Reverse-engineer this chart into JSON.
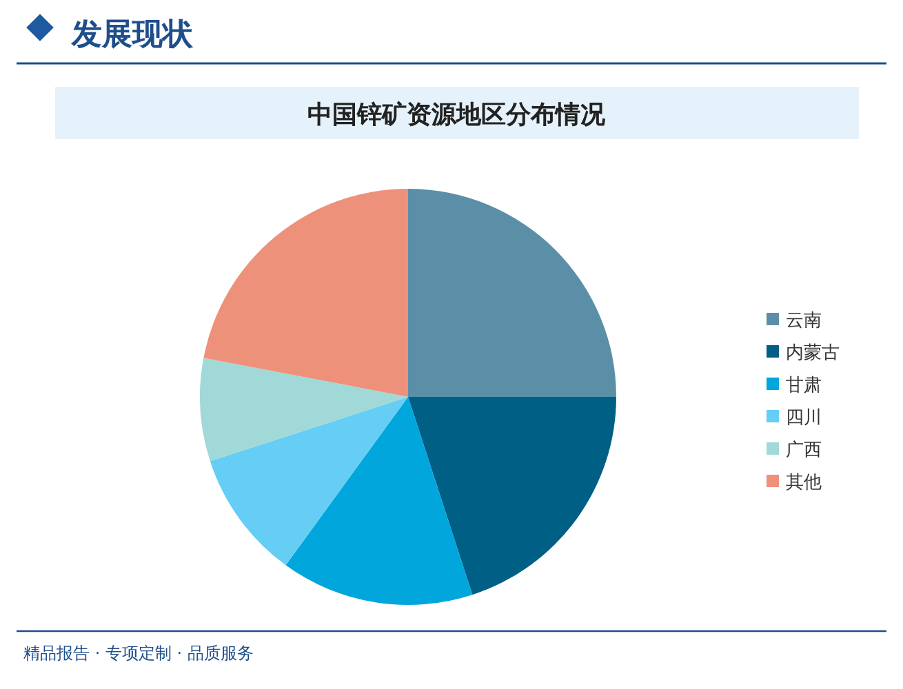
{
  "chart_data": {
    "type": "pie",
    "title": "中国锌矿资源地区分布情况",
    "categories": [
      "云南",
      "内蒙古",
      "甘肃",
      "四川",
      "广西",
      "其他"
    ],
    "values": [
      25,
      20,
      15,
      10,
      8,
      22
    ],
    "colors": [
      "#5b8fa8",
      "#005f85",
      "#00a6dc",
      "#66cdf5",
      "#a0d9d8",
      "#ee917a"
    ],
    "legend": "right",
    "annotations": [
      "发展现状",
      "精品报告 · 专项定制 · 品质服务"
    ]
  }
}
